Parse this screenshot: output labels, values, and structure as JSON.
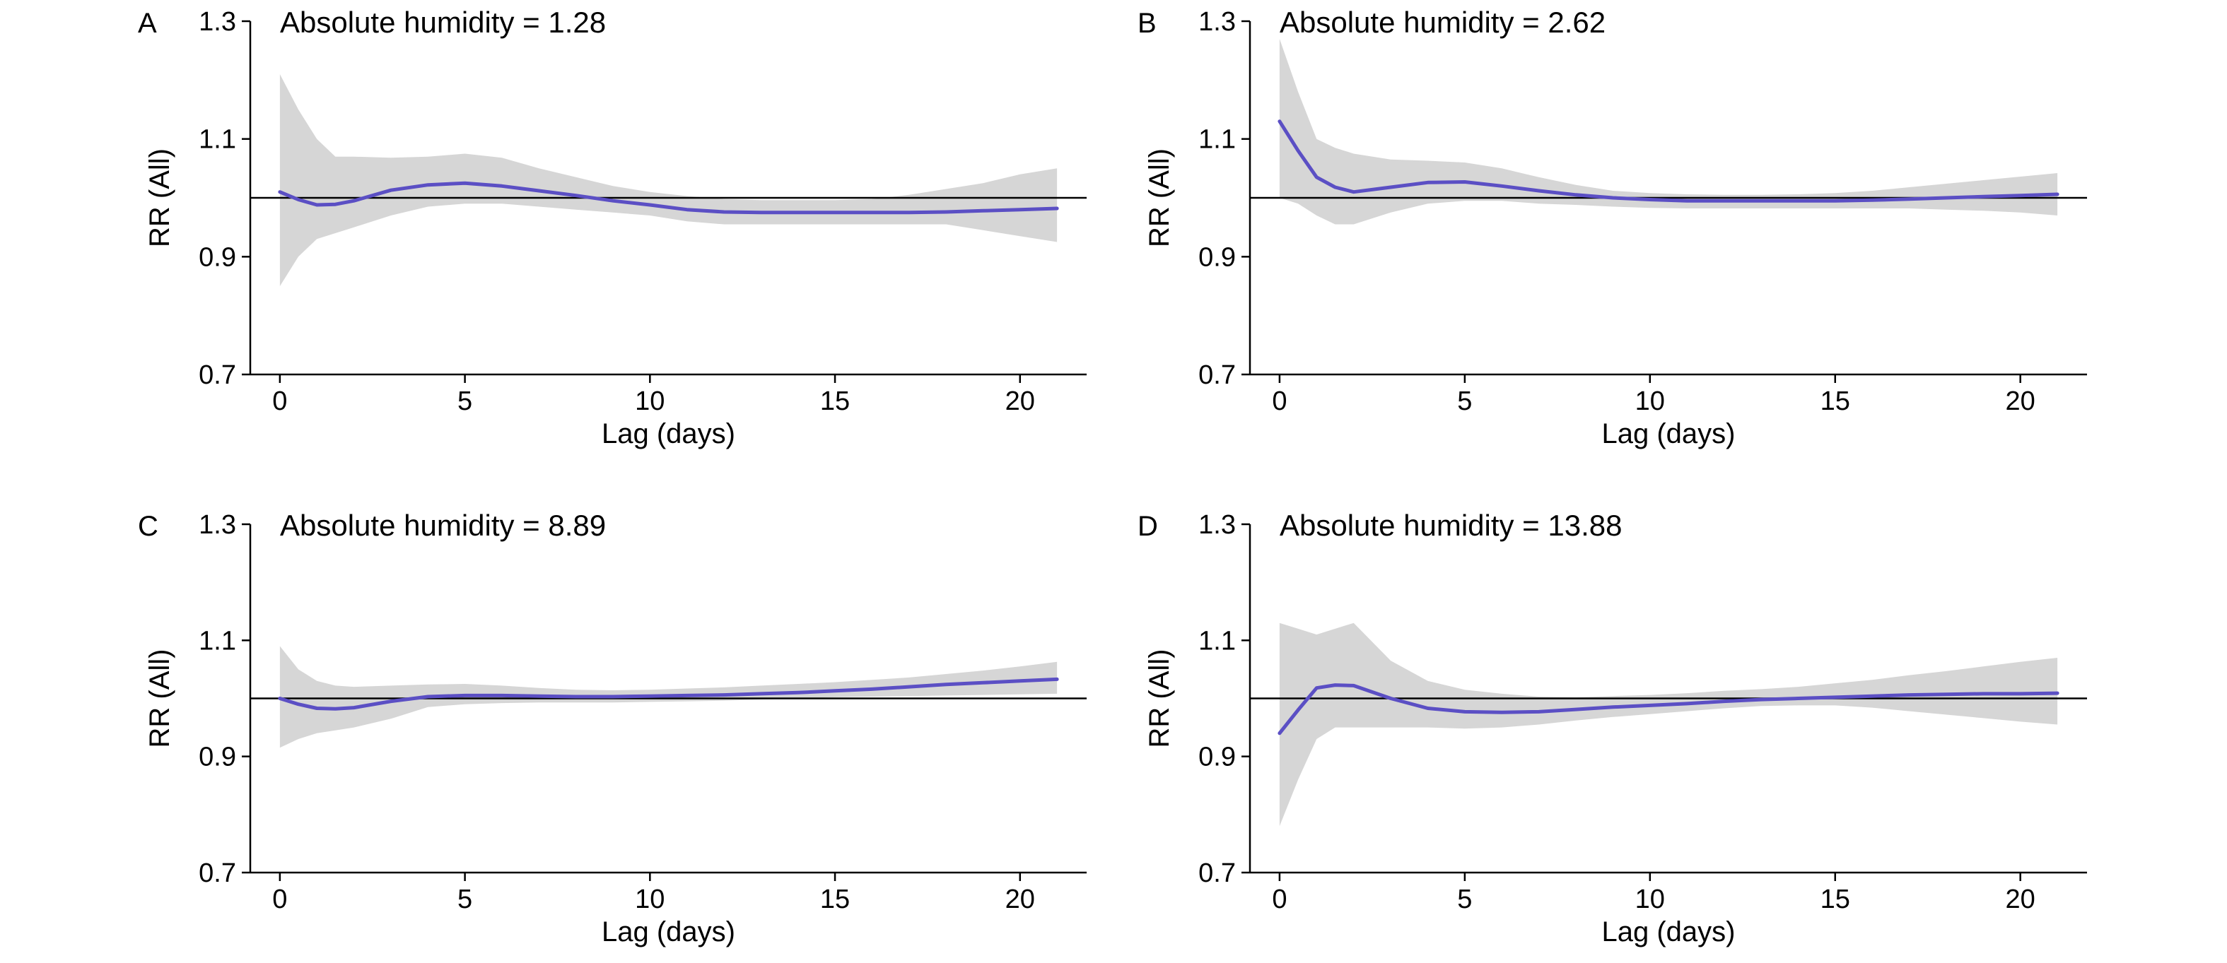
{
  "figure": {
    "colors": {
      "line": "#5b4fc4",
      "ci_band": "#d6d6d6",
      "reference": "#000000",
      "axis": "#000000"
    }
  },
  "chart_data": [
    {
      "panel": "A",
      "type": "line",
      "title": "Absolute humidity = 1.28",
      "xlabel": "Lag (days)",
      "ylabel": "RR (All)",
      "xlim": [
        -0.8,
        21.8
      ],
      "ylim": [
        0.7,
        1.3
      ],
      "xticks": [
        0,
        5,
        10,
        15,
        20
      ],
      "yticks": [
        0.7,
        0.9,
        1.1,
        1.3
      ],
      "ytick_labels": [
        "0.7",
        "0.9",
        "1.1",
        "1.3"
      ],
      "reference_y": 1.0,
      "x": [
        0,
        0.5,
        1,
        1.5,
        2,
        3,
        4,
        5,
        6,
        7,
        8,
        9,
        10,
        11,
        12,
        13,
        14,
        15,
        16,
        17,
        18,
        19,
        20,
        21
      ],
      "rr": [
        1.01,
        0.997,
        0.988,
        0.989,
        0.995,
        1.013,
        1.022,
        1.025,
        1.02,
        1.012,
        1.004,
        0.995,
        0.988,
        0.98,
        0.976,
        0.975,
        0.975,
        0.975,
        0.975,
        0.975,
        0.976,
        0.978,
        0.98,
        0.982
      ],
      "ci_lower": [
        0.85,
        0.9,
        0.93,
        0.94,
        0.95,
        0.97,
        0.985,
        0.99,
        0.99,
        0.985,
        0.98,
        0.975,
        0.97,
        0.96,
        0.955,
        0.955,
        0.955,
        0.955,
        0.955,
        0.955,
        0.955,
        0.945,
        0.935,
        0.925
      ],
      "ci_upper": [
        1.21,
        1.15,
        1.1,
        1.07,
        1.07,
        1.068,
        1.07,
        1.075,
        1.068,
        1.05,
        1.035,
        1.02,
        1.01,
        1.003,
        0.998,
        0.996,
        0.996,
        0.996,
        0.998,
        1.005,
        1.015,
        1.025,
        1.04,
        1.05
      ]
    },
    {
      "panel": "B",
      "type": "line",
      "title": "Absolute humidity = 2.62",
      "xlabel": "Lag (days)",
      "ylabel": "RR (All)",
      "xlim": [
        -0.8,
        21.8
      ],
      "ylim": [
        0.7,
        1.3
      ],
      "xticks": [
        0,
        5,
        10,
        15,
        20
      ],
      "yticks": [
        0.7,
        0.9,
        1.1,
        1.3
      ],
      "ytick_labels": [
        "0.7",
        "0.9",
        "1.1",
        "1.3"
      ],
      "reference_y": 1.0,
      "x": [
        0,
        0.5,
        1,
        1.5,
        2,
        3,
        4,
        5,
        6,
        7,
        8,
        9,
        10,
        11,
        12,
        13,
        14,
        15,
        16,
        17,
        18,
        19,
        20,
        21
      ],
      "rr": [
        1.13,
        1.08,
        1.035,
        1.018,
        1.01,
        1.018,
        1.026,
        1.027,
        1.02,
        1.012,
        1.005,
        1.0,
        0.997,
        0.995,
        0.995,
        0.995,
        0.995,
        0.995,
        0.996,
        0.998,
        1.0,
        1.002,
        1.004,
        1.006
      ],
      "ci_lower": [
        1.0,
        0.99,
        0.97,
        0.955,
        0.955,
        0.975,
        0.99,
        0.995,
        0.995,
        0.99,
        0.988,
        0.985,
        0.983,
        0.982,
        0.982,
        0.982,
        0.982,
        0.982,
        0.982,
        0.982,
        0.98,
        0.978,
        0.975,
        0.97
      ],
      "ci_upper": [
        1.27,
        1.18,
        1.1,
        1.085,
        1.075,
        1.065,
        1.063,
        1.06,
        1.05,
        1.035,
        1.022,
        1.012,
        1.008,
        1.006,
        1.005,
        1.005,
        1.006,
        1.008,
        1.012,
        1.018,
        1.024,
        1.03,
        1.036,
        1.042
      ]
    },
    {
      "panel": "C",
      "type": "line",
      "title": "Absolute humidity = 8.89",
      "xlabel": "Lag (days)",
      "ylabel": "RR (All)",
      "xlim": [
        -0.8,
        21.8
      ],
      "ylim": [
        0.7,
        1.3
      ],
      "xticks": [
        0,
        5,
        10,
        15,
        20
      ],
      "yticks": [
        0.7,
        0.9,
        1.1,
        1.3
      ],
      "ytick_labels": [
        "0.7",
        "0.9",
        "1.1",
        "1.3"
      ],
      "reference_y": 1.0,
      "x": [
        0,
        0.5,
        1,
        1.5,
        2,
        3,
        4,
        5,
        6,
        7,
        8,
        9,
        10,
        11,
        12,
        13,
        14,
        15,
        16,
        17,
        18,
        19,
        20,
        21
      ],
      "rr": [
        1.0,
        0.99,
        0.983,
        0.982,
        0.984,
        0.995,
        1.003,
        1.005,
        1.005,
        1.004,
        1.003,
        1.003,
        1.004,
        1.005,
        1.006,
        1.008,
        1.01,
        1.013,
        1.016,
        1.02,
        1.024,
        1.027,
        1.03,
        1.033
      ],
      "ci_lower": [
        0.915,
        0.93,
        0.94,
        0.945,
        0.95,
        0.965,
        0.985,
        0.99,
        0.992,
        0.993,
        0.993,
        0.993,
        0.994,
        0.995,
        0.996,
        0.998,
        1.0,
        1.002,
        1.003,
        1.004,
        1.005,
        1.006,
        1.007,
        1.008
      ],
      "ci_upper": [
        1.09,
        1.05,
        1.03,
        1.022,
        1.02,
        1.022,
        1.024,
        1.025,
        1.022,
        1.018,
        1.015,
        1.014,
        1.015,
        1.017,
        1.019,
        1.022,
        1.025,
        1.028,
        1.032,
        1.036,
        1.042,
        1.048,
        1.055,
        1.063
      ]
    },
    {
      "panel": "D",
      "type": "line",
      "title": "Absolute humidity = 13.88",
      "xlabel": "Lag (days)",
      "ylabel": "RR (All)",
      "xlim": [
        -0.8,
        21.8
      ],
      "ylim": [
        0.7,
        1.3
      ],
      "xticks": [
        0,
        5,
        10,
        15,
        20
      ],
      "yticks": [
        0.7,
        0.9,
        1.1,
        1.3
      ],
      "ytick_labels": [
        "0.7",
        "0.9",
        "1.1",
        "1.3"
      ],
      "reference_y": 1.0,
      "x": [
        0,
        0.5,
        1,
        1.5,
        2,
        3,
        4,
        5,
        6,
        7,
        8,
        9,
        10,
        11,
        12,
        13,
        14,
        15,
        16,
        17,
        18,
        19,
        20,
        21
      ],
      "rr": [
        0.94,
        0.98,
        1.018,
        1.023,
        1.022,
        1.0,
        0.983,
        0.977,
        0.976,
        0.977,
        0.981,
        0.985,
        0.988,
        0.991,
        0.995,
        0.998,
        1.0,
        1.002,
        1.004,
        1.006,
        1.007,
        1.008,
        1.008,
        1.009
      ],
      "ci_lower": [
        0.78,
        0.86,
        0.93,
        0.95,
        0.95,
        0.95,
        0.95,
        0.948,
        0.95,
        0.955,
        0.962,
        0.968,
        0.973,
        0.978,
        0.983,
        0.987,
        0.988,
        0.988,
        0.984,
        0.978,
        0.972,
        0.966,
        0.96,
        0.955
      ],
      "ci_upper": [
        1.13,
        1.12,
        1.11,
        1.12,
        1.13,
        1.065,
        1.03,
        1.015,
        1.008,
        1.003,
        1.002,
        1.004,
        1.006,
        1.009,
        1.013,
        1.016,
        1.02,
        1.026,
        1.032,
        1.04,
        1.047,
        1.055,
        1.063,
        1.07
      ]
    }
  ]
}
